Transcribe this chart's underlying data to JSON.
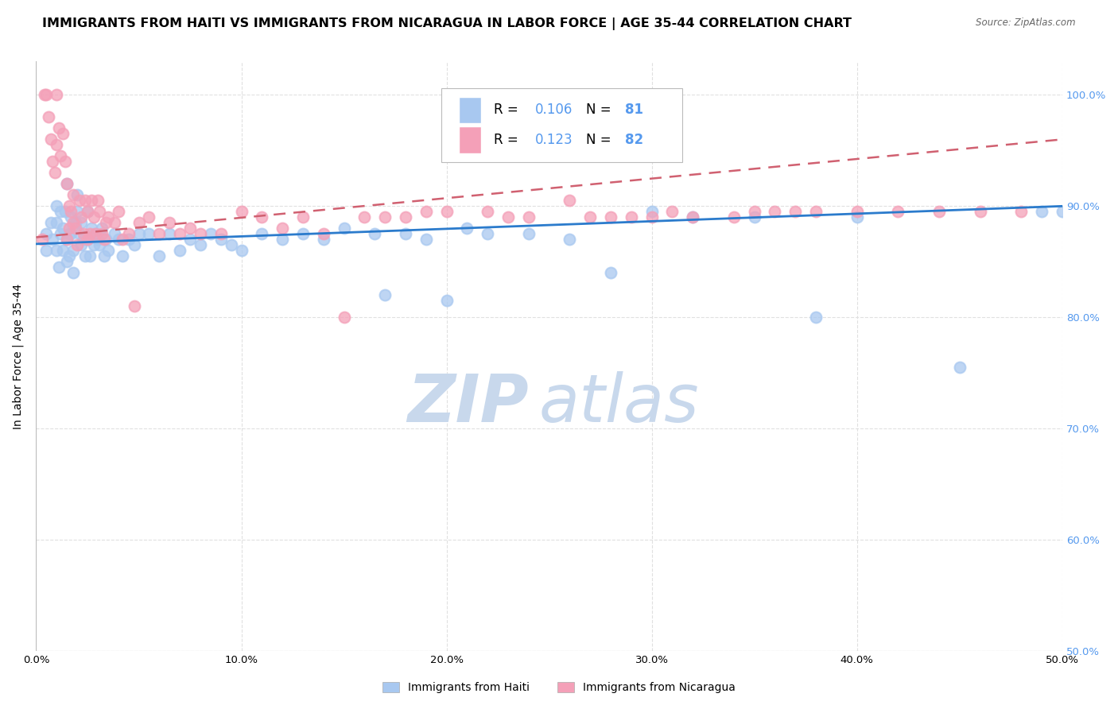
{
  "title": "IMMIGRANTS FROM HAITI VS IMMIGRANTS FROM NICARAGUA IN LABOR FORCE | AGE 35-44 CORRELATION CHART",
  "source": "Source: ZipAtlas.com",
  "ylabel": "In Labor Force | Age 35-44",
  "xlim": [
    0.0,
    0.5
  ],
  "ylim": [
    0.5,
    1.03
  ],
  "ytick_labels": [
    "50.0%",
    "60.0%",
    "70.0%",
    "80.0%",
    "90.0%",
    "100.0%"
  ],
  "ytick_values": [
    0.5,
    0.6,
    0.7,
    0.8,
    0.9,
    1.0
  ],
  "xtick_labels": [
    "0.0%",
    "10.0%",
    "20.0%",
    "30.0%",
    "40.0%",
    "50.0%"
  ],
  "xtick_values": [
    0.0,
    0.1,
    0.2,
    0.3,
    0.4,
    0.5
  ],
  "haiti_color": "#A8C8F0",
  "nicaragua_color": "#F4A0B8",
  "haiti_R": 0.106,
  "haiti_N": 81,
  "nicaragua_R": 0.123,
  "nicaragua_N": 82,
  "legend_label_haiti": "Immigrants from Haiti",
  "legend_label_nicaragua": "Immigrants from Nicaragua",
  "haiti_scatter_x": [
    0.005,
    0.005,
    0.007,
    0.008,
    0.01,
    0.01,
    0.01,
    0.011,
    0.012,
    0.012,
    0.013,
    0.013,
    0.014,
    0.015,
    0.015,
    0.015,
    0.016,
    0.016,
    0.017,
    0.017,
    0.018,
    0.018,
    0.019,
    0.02,
    0.02,
    0.021,
    0.022,
    0.022,
    0.023,
    0.024,
    0.025,
    0.025,
    0.026,
    0.027,
    0.028,
    0.029,
    0.03,
    0.031,
    0.032,
    0.033,
    0.034,
    0.035,
    0.038,
    0.04,
    0.042,
    0.045,
    0.048,
    0.05,
    0.055,
    0.06,
    0.065,
    0.07,
    0.075,
    0.08,
    0.085,
    0.09,
    0.095,
    0.1,
    0.11,
    0.12,
    0.13,
    0.14,
    0.15,
    0.165,
    0.17,
    0.18,
    0.19,
    0.2,
    0.21,
    0.22,
    0.24,
    0.26,
    0.28,
    0.3,
    0.32,
    0.35,
    0.38,
    0.4,
    0.45,
    0.49,
    0.5
  ],
  "haiti_scatter_y": [
    0.875,
    0.86,
    0.885,
    0.87,
    0.9,
    0.885,
    0.86,
    0.845,
    0.895,
    0.875,
    0.86,
    0.88,
    0.895,
    0.87,
    0.85,
    0.92,
    0.875,
    0.855,
    0.89,
    0.875,
    0.86,
    0.84,
    0.885,
    0.91,
    0.895,
    0.875,
    0.865,
    0.885,
    0.87,
    0.855,
    0.895,
    0.87,
    0.855,
    0.88,
    0.865,
    0.875,
    0.87,
    0.865,
    0.88,
    0.855,
    0.87,
    0.86,
    0.875,
    0.87,
    0.855,
    0.87,
    0.865,
    0.875,
    0.875,
    0.855,
    0.875,
    0.86,
    0.87,
    0.865,
    0.875,
    0.87,
    0.865,
    0.86,
    0.875,
    0.87,
    0.875,
    0.87,
    0.88,
    0.875,
    0.82,
    0.875,
    0.87,
    0.815,
    0.88,
    0.875,
    0.875,
    0.87,
    0.84,
    0.895,
    0.89,
    0.89,
    0.8,
    0.89,
    0.755,
    0.895,
    0.895
  ],
  "nicaragua_scatter_x": [
    0.003,
    0.004,
    0.005,
    0.006,
    0.007,
    0.008,
    0.009,
    0.01,
    0.01,
    0.011,
    0.012,
    0.013,
    0.014,
    0.015,
    0.015,
    0.016,
    0.016,
    0.017,
    0.018,
    0.018,
    0.019,
    0.02,
    0.021,
    0.022,
    0.023,
    0.024,
    0.025,
    0.025,
    0.026,
    0.027,
    0.028,
    0.029,
    0.03,
    0.031,
    0.032,
    0.033,
    0.034,
    0.035,
    0.038,
    0.04,
    0.042,
    0.045,
    0.048,
    0.05,
    0.055,
    0.06,
    0.065,
    0.07,
    0.075,
    0.08,
    0.09,
    0.1,
    0.11,
    0.12,
    0.13,
    0.14,
    0.15,
    0.16,
    0.17,
    0.18,
    0.19,
    0.2,
    0.22,
    0.23,
    0.24,
    0.26,
    0.27,
    0.28,
    0.29,
    0.3,
    0.31,
    0.32,
    0.34,
    0.35,
    0.36,
    0.37,
    0.38,
    0.4,
    0.42,
    0.44,
    0.46,
    0.48
  ],
  "nicaragua_scatter_y": [
    0.87,
    1.0,
    1.0,
    0.98,
    0.96,
    0.94,
    0.93,
    0.955,
    1.0,
    0.97,
    0.945,
    0.965,
    0.94,
    0.92,
    0.87,
    0.9,
    0.88,
    0.895,
    0.91,
    0.885,
    0.88,
    0.865,
    0.905,
    0.89,
    0.875,
    0.905,
    0.895,
    0.87,
    0.875,
    0.905,
    0.89,
    0.875,
    0.905,
    0.895,
    0.875,
    0.87,
    0.885,
    0.89,
    0.885,
    0.895,
    0.87,
    0.875,
    0.81,
    0.885,
    0.89,
    0.875,
    0.885,
    0.875,
    0.88,
    0.875,
    0.875,
    0.895,
    0.89,
    0.88,
    0.89,
    0.875,
    0.8,
    0.89,
    0.89,
    0.89,
    0.895,
    0.895,
    0.895,
    0.89,
    0.89,
    0.905,
    0.89,
    0.89,
    0.89,
    0.89,
    0.895,
    0.89,
    0.89,
    0.895,
    0.895,
    0.895,
    0.895,
    0.895,
    0.895,
    0.895,
    0.895,
    0.895
  ],
  "haiti_line_color": "#2B7BCC",
  "nicaragua_line_color": "#D06070",
  "background_color": "#FFFFFF",
  "grid_color": "#E0E0E0",
  "watermark_zip": "ZIP",
  "watermark_atlas": "atlas",
  "watermark_color": "#C8D8EC",
  "right_ylabel_color": "#5599EE",
  "title_fontsize": 11.5,
  "axis_label_fontsize": 10,
  "tick_fontsize": 9.5
}
